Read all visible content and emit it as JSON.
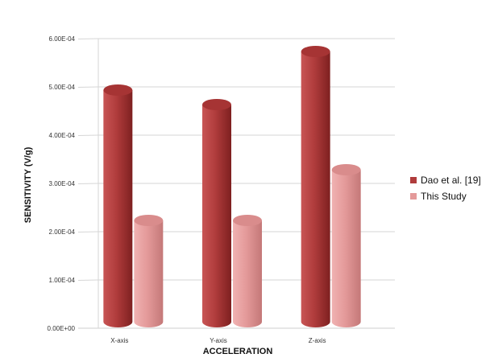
{
  "chart_data": {
    "type": "bar",
    "categories": [
      "X-axis",
      "Y-axis",
      "Z-axis"
    ],
    "series": [
      {
        "name": "Dao et al. [19]",
        "values": [
          0.00048,
          0.00045,
          0.00056
        ],
        "color": "#b03c3c"
      },
      {
        "name": "This Study",
        "values": [
          0.00021,
          0.00021,
          0.000315
        ],
        "color": "#e49a9a"
      }
    ],
    "xlabel": "ACCELERATION",
    "ylabel": "SENSITIVITY (V/g)",
    "ylim": [
      0,
      0.0006
    ],
    "yticks": [
      "0.00E+00",
      "1.00E-04",
      "2.00E-04",
      "3.00E-04",
      "4.00E-04",
      "5.00E-04",
      "6.00E-04"
    ],
    "grid": true,
    "legend": "right"
  }
}
